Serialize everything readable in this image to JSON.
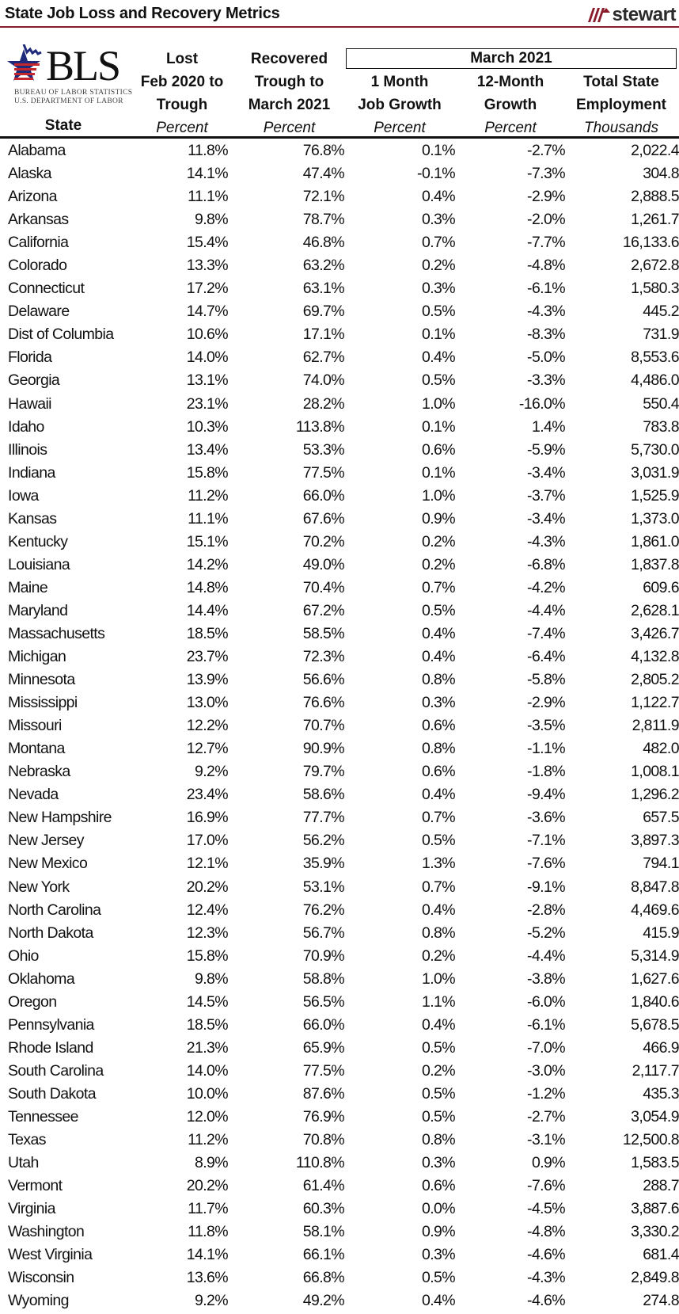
{
  "header": {
    "title": "State Job Loss and Recovery Metrics",
    "brand_logo": "stewart",
    "brand_color": "#8a1b2b",
    "source_logo": {
      "name": "BLS",
      "line1": "BUREAU OF LABOR STATISTICS",
      "line2": "U.S. DEPARTMENT OF LABOR"
    }
  },
  "table": {
    "group_header": "March 2021",
    "columns": [
      {
        "line1": "",
        "line2": "",
        "line3": "State",
        "unit": ""
      },
      {
        "line1": "Lost",
        "line2": "Feb 2020 to",
        "line3": "Trough",
        "unit": "Percent"
      },
      {
        "line1": "Recovered",
        "line2": "Trough to",
        "line3": "March 2021",
        "unit": "Percent"
      },
      {
        "line1": "",
        "line2": "1 Month",
        "line3": "Job Growth",
        "unit": "Percent"
      },
      {
        "line1": "",
        "line2": "12-Month",
        "line3": "Growth",
        "unit": "Percent"
      },
      {
        "line1": "",
        "line2": "Total State",
        "line3": "Employment",
        "unit": "Thousands"
      }
    ],
    "rows": [
      [
        "Alabama",
        "11.8%",
        "76.8%",
        "0.1%",
        "-2.7%",
        "2,022.4"
      ],
      [
        "Alaska",
        "14.1%",
        "47.4%",
        "-0.1%",
        "-7.3%",
        "304.8"
      ],
      [
        "Arizona",
        "11.1%",
        "72.1%",
        "0.4%",
        "-2.9%",
        "2,888.5"
      ],
      [
        "Arkansas",
        "9.8%",
        "78.7%",
        "0.3%",
        "-2.0%",
        "1,261.7"
      ],
      [
        "California",
        "15.4%",
        "46.8%",
        "0.7%",
        "-7.7%",
        "16,133.6"
      ],
      [
        "Colorado",
        "13.3%",
        "63.2%",
        "0.2%",
        "-4.8%",
        "2,672.8"
      ],
      [
        "Connecticut",
        "17.2%",
        "63.1%",
        "0.3%",
        "-6.1%",
        "1,580.3"
      ],
      [
        "Delaware",
        "14.7%",
        "69.7%",
        "0.5%",
        "-4.3%",
        "445.2"
      ],
      [
        "Dist of Columbia",
        "10.6%",
        "17.1%",
        "0.1%",
        "-8.3%",
        "731.9"
      ],
      [
        "Florida",
        "14.0%",
        "62.7%",
        "0.4%",
        "-5.0%",
        "8,553.6"
      ],
      [
        "Georgia",
        "13.1%",
        "74.0%",
        "0.5%",
        "-3.3%",
        "4,486.0"
      ],
      [
        "Hawaii",
        "23.1%",
        "28.2%",
        "1.0%",
        "-16.0%",
        "550.4"
      ],
      [
        "Idaho",
        "10.3%",
        "113.8%",
        "0.1%",
        "1.4%",
        "783.8"
      ],
      [
        "Illinois",
        "13.4%",
        "53.3%",
        "0.6%",
        "-5.9%",
        "5,730.0"
      ],
      [
        "Indiana",
        "15.8%",
        "77.5%",
        "0.1%",
        "-3.4%",
        "3,031.9"
      ],
      [
        "Iowa",
        "11.2%",
        "66.0%",
        "1.0%",
        "-3.7%",
        "1,525.9"
      ],
      [
        "Kansas",
        "11.1%",
        "67.6%",
        "0.9%",
        "-3.4%",
        "1,373.0"
      ],
      [
        "Kentucky",
        "15.1%",
        "70.2%",
        "0.2%",
        "-4.3%",
        "1,861.0"
      ],
      [
        "Louisiana",
        "14.2%",
        "49.0%",
        "0.2%",
        "-6.8%",
        "1,837.8"
      ],
      [
        "Maine",
        "14.8%",
        "70.4%",
        "0.7%",
        "-4.2%",
        "609.6"
      ],
      [
        "Maryland",
        "14.4%",
        "67.2%",
        "0.5%",
        "-4.4%",
        "2,628.1"
      ],
      [
        "Massachusetts",
        "18.5%",
        "58.5%",
        "0.4%",
        "-7.4%",
        "3,426.7"
      ],
      [
        "Michigan",
        "23.7%",
        "72.3%",
        "0.4%",
        "-6.4%",
        "4,132.8"
      ],
      [
        "Minnesota",
        "13.9%",
        "56.6%",
        "0.8%",
        "-5.8%",
        "2,805.2"
      ],
      [
        "Mississippi",
        "13.0%",
        "76.6%",
        "0.3%",
        "-2.9%",
        "1,122.7"
      ],
      [
        "Missouri",
        "12.2%",
        "70.7%",
        "0.6%",
        "-3.5%",
        "2,811.9"
      ],
      [
        "Montana",
        "12.7%",
        "90.9%",
        "0.8%",
        "-1.1%",
        "482.0"
      ],
      [
        "Nebraska",
        "9.2%",
        "79.7%",
        "0.6%",
        "-1.8%",
        "1,008.1"
      ],
      [
        "Nevada",
        "23.4%",
        "58.6%",
        "0.4%",
        "-9.4%",
        "1,296.2"
      ],
      [
        "New Hampshire",
        "16.9%",
        "77.7%",
        "0.7%",
        "-3.6%",
        "657.5"
      ],
      [
        "New Jersey",
        "17.0%",
        "56.2%",
        "0.5%",
        "-7.1%",
        "3,897.3"
      ],
      [
        "New Mexico",
        "12.1%",
        "35.9%",
        "1.3%",
        "-7.6%",
        "794.1"
      ],
      [
        "New York",
        "20.2%",
        "53.1%",
        "0.7%",
        "-9.1%",
        "8,847.8"
      ],
      [
        "North Carolina",
        "12.4%",
        "76.2%",
        "0.4%",
        "-2.8%",
        "4,469.6"
      ],
      [
        "North Dakota",
        "12.3%",
        "56.7%",
        "0.8%",
        "-5.2%",
        "415.9"
      ],
      [
        "Ohio",
        "15.8%",
        "70.9%",
        "0.2%",
        "-4.4%",
        "5,314.9"
      ],
      [
        "Oklahoma",
        "9.8%",
        "58.8%",
        "1.0%",
        "-3.8%",
        "1,627.6"
      ],
      [
        "Oregon",
        "14.5%",
        "56.5%",
        "1.1%",
        "-6.0%",
        "1,840.6"
      ],
      [
        "Pennsylvania",
        "18.5%",
        "66.0%",
        "0.4%",
        "-6.1%",
        "5,678.5"
      ],
      [
        "Rhode Island",
        "21.3%",
        "65.9%",
        "0.5%",
        "-7.0%",
        "466.9"
      ],
      [
        "South Carolina",
        "14.0%",
        "77.5%",
        "0.2%",
        "-3.0%",
        "2,117.7"
      ],
      [
        "South Dakota",
        "10.0%",
        "87.6%",
        "0.5%",
        "-1.2%",
        "435.3"
      ],
      [
        "Tennessee",
        "12.0%",
        "76.9%",
        "0.5%",
        "-2.7%",
        "3,054.9"
      ],
      [
        "Texas",
        "11.2%",
        "70.8%",
        "0.8%",
        "-3.1%",
        "12,500.8"
      ],
      [
        "Utah",
        "8.9%",
        "110.8%",
        "0.3%",
        "0.9%",
        "1,583.5"
      ],
      [
        "Vermont",
        "20.2%",
        "61.4%",
        "0.6%",
        "-7.6%",
        "288.7"
      ],
      [
        "Virginia",
        "11.7%",
        "60.3%",
        "0.0%",
        "-4.5%",
        "3,887.6"
      ],
      [
        "Washington",
        "11.8%",
        "58.1%",
        "0.9%",
        "-4.8%",
        "3,330.2"
      ],
      [
        "West Virginia",
        "14.1%",
        "66.1%",
        "0.3%",
        "-4.6%",
        "681.4"
      ],
      [
        "Wisconsin",
        "13.6%",
        "66.8%",
        "0.5%",
        "-4.3%",
        "2,849.8"
      ],
      [
        "Wyoming",
        "9.2%",
        "49.2%",
        "0.4%",
        "-4.6%",
        "274.8"
      ]
    ]
  }
}
